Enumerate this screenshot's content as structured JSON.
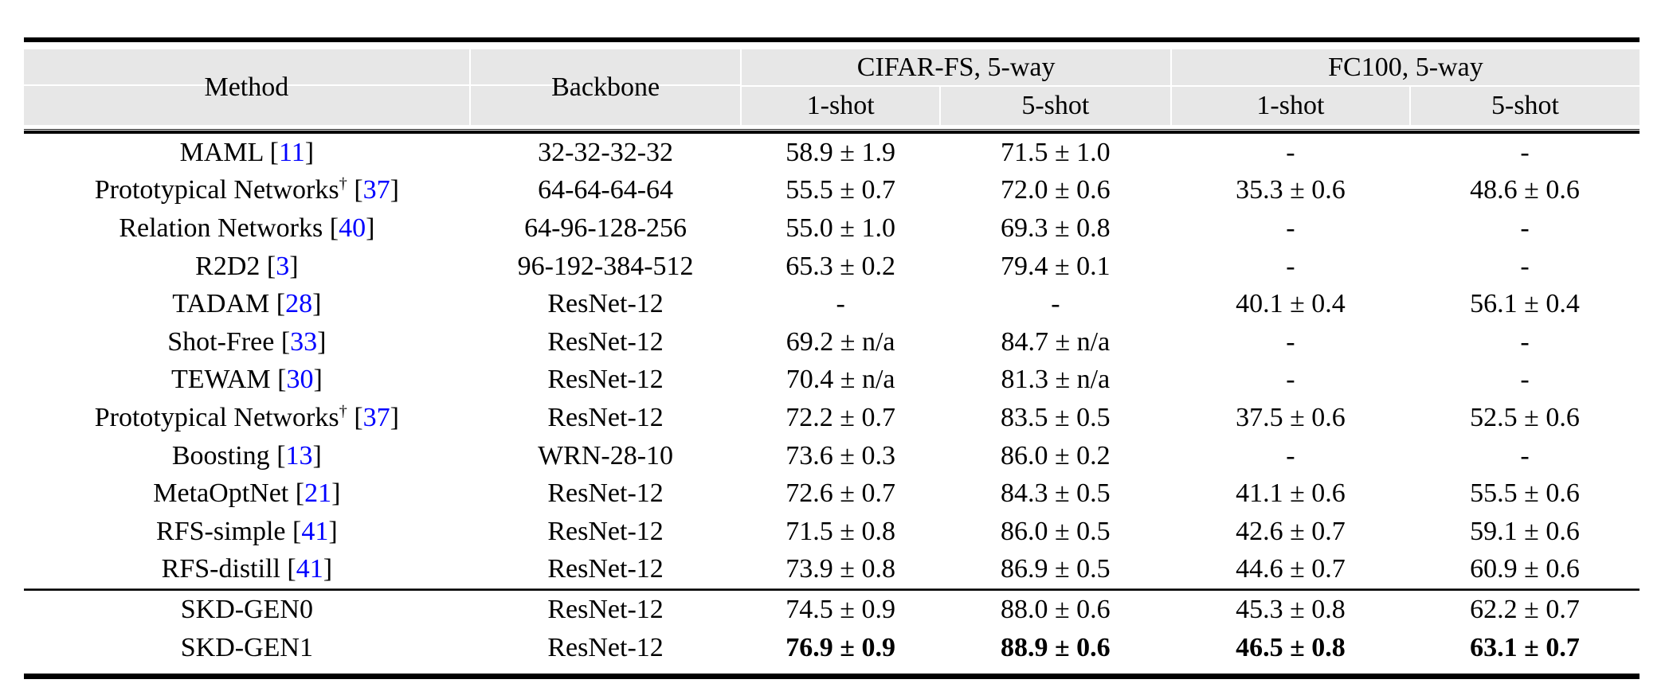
{
  "meta": {
    "dagger": "†",
    "citation_prefix": " [",
    "citation_suffix": "]"
  },
  "colors": {
    "citation_blue": "#0000FF",
    "header_gray": "#E7E7E7",
    "rule_black": "#000000"
  },
  "header": {
    "method": "Method",
    "backbone": "Backbone",
    "groups": [
      {
        "label": "CIFAR-FS, 5-way",
        "subs": [
          "1-shot",
          "5-shot"
        ]
      },
      {
        "label": "FC100, 5-way",
        "subs": [
          "1-shot",
          "5-shot"
        ]
      }
    ]
  },
  "rows": [
    {
      "method": "MAML",
      "dagger": false,
      "cite": "11",
      "backbone": "32-32-32-32",
      "cells": [
        "58.9 ± 1.9",
        "71.5 ± 1.0",
        "-",
        "-"
      ],
      "bold": false
    },
    {
      "method": "Prototypical Networks",
      "dagger": true,
      "cite": "37",
      "backbone": "64-64-64-64",
      "cells": [
        "55.5 ± 0.7",
        "72.0 ± 0.6",
        "35.3 ± 0.6",
        "48.6 ± 0.6"
      ],
      "bold": false
    },
    {
      "method": "Relation Networks",
      "dagger": false,
      "cite": "40",
      "backbone": "64-96-128-256",
      "cells": [
        "55.0 ± 1.0",
        "69.3 ± 0.8",
        "-",
        "-"
      ],
      "bold": false
    },
    {
      "method": "R2D2",
      "dagger": false,
      "cite": "3",
      "backbone": "96-192-384-512",
      "cells": [
        "65.3 ± 0.2",
        "79.4 ± 0.1",
        "-",
        "-"
      ],
      "bold": false
    },
    {
      "method": "TADAM",
      "dagger": false,
      "cite": "28",
      "backbone": "ResNet-12",
      "cells": [
        "-",
        "-",
        "40.1 ± 0.4",
        "56.1 ± 0.4"
      ],
      "bold": false
    },
    {
      "method": "Shot-Free",
      "dagger": false,
      "cite": "33",
      "backbone": "ResNet-12",
      "cells": [
        "69.2 ± n/a",
        "84.7 ± n/a",
        "-",
        "-"
      ],
      "bold": false
    },
    {
      "method": "TEWAM",
      "dagger": false,
      "cite": "30",
      "backbone": "ResNet-12",
      "cells": [
        "70.4 ± n/a",
        "81.3 ± n/a",
        "-",
        "-"
      ],
      "bold": false
    },
    {
      "method": "Prototypical Networks",
      "dagger": true,
      "cite": "37",
      "backbone": "ResNet-12",
      "cells": [
        "72.2 ± 0.7",
        "83.5 ± 0.5",
        "37.5 ± 0.6",
        "52.5 ± 0.6"
      ],
      "bold": false
    },
    {
      "method": "Boosting",
      "dagger": false,
      "cite": "13",
      "backbone": "WRN-28-10",
      "cells": [
        "73.6 ± 0.3",
        "86.0 ± 0.2",
        "-",
        "-"
      ],
      "bold": false
    },
    {
      "method": "MetaOptNet",
      "dagger": false,
      "cite": "21",
      "backbone": "ResNet-12",
      "cells": [
        "72.6 ± 0.7",
        "84.3 ± 0.5",
        "41.1 ± 0.6",
        "55.5 ± 0.6"
      ],
      "bold": false
    },
    {
      "method": "RFS-simple",
      "dagger": false,
      "cite": "41",
      "backbone": "ResNet-12",
      "cells": [
        "71.5 ± 0.8",
        "86.0 ± 0.5",
        "42.6 ± 0.7",
        "59.1 ± 0.6"
      ],
      "bold": false
    },
    {
      "method": "RFS-distill",
      "dagger": false,
      "cite": "41",
      "backbone": "ResNet-12",
      "cells": [
        "73.9 ± 0.8",
        "86.9 ± 0.5",
        "44.6 ± 0.7",
        "60.9 ± 0.6"
      ],
      "bold": false
    }
  ],
  "skd_rows": [
    {
      "method": "SKD-GEN0",
      "dagger": false,
      "cite": null,
      "backbone": "ResNet-12",
      "cells": [
        "74.5 ± 0.9",
        "88.0 ± 0.6",
        "45.3 ± 0.8",
        "62.2 ± 0.7"
      ],
      "bold": false
    },
    {
      "method": "SKD-GEN1",
      "dagger": false,
      "cite": null,
      "backbone": "ResNet-12",
      "cells": [
        "76.9 ± 0.9",
        "88.9 ± 0.6",
        "46.5 ± 0.8",
        "63.1 ± 0.7"
      ],
      "bold": true
    }
  ]
}
